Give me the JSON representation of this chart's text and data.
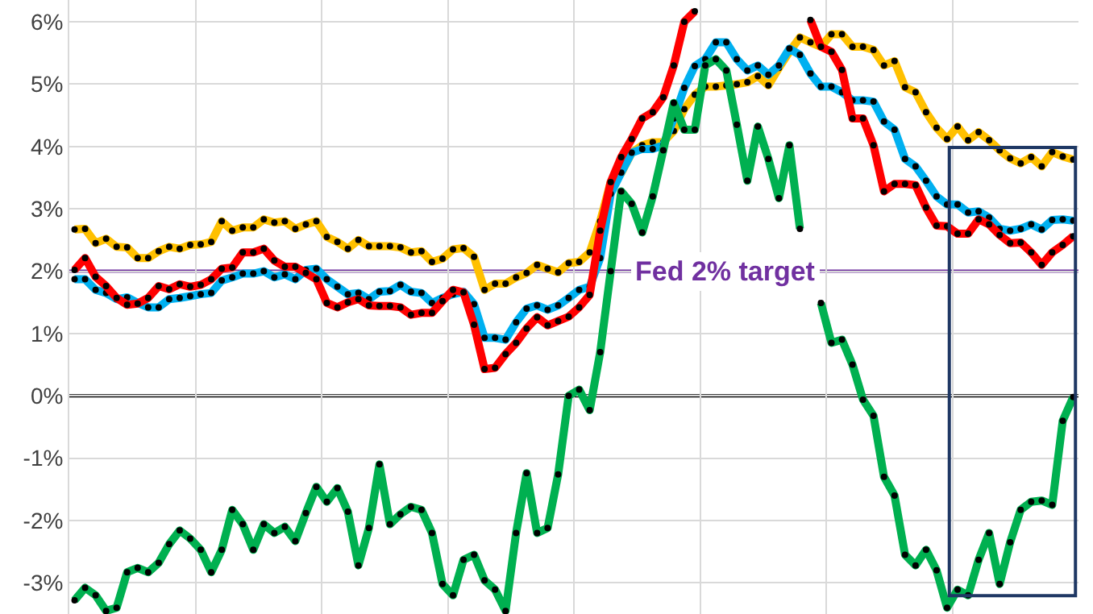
{
  "chart_data": {
    "type": "line",
    "categories": [
      null,
      null,
      null,
      null,
      null,
      null,
      null,
      null,
      null,
      null,
      null,
      null,
      null,
      null,
      null,
      null,
      null,
      null,
      null,
      null,
      null,
      null,
      null,
      null,
      null,
      null,
      null,
      null,
      null,
      null,
      null,
      null,
      null,
      null,
      null,
      null,
      null,
      null,
      null,
      null,
      null,
      null,
      null,
      null,
      null,
      null,
      null,
      null,
      null,
      null,
      null,
      null,
      null,
      null,
      null,
      null,
      null,
      null,
      null,
      null,
      null,
      null,
      null,
      null,
      null,
      null,
      null,
      null,
      null,
      null,
      null,
      null,
      null,
      null,
      null,
      null,
      null,
      null,
      null,
      null,
      null,
      null,
      null,
      null,
      null,
      null,
      null,
      null,
      null,
      null,
      null,
      null,
      null,
      null,
      null,
      null
    ],
    "series": [
      {
        "color": "#ffc000",
        "values": [
          2.67,
          2.68,
          2.45,
          2.52,
          2.39,
          2.38,
          2.21,
          2.21,
          2.32,
          2.39,
          2.36,
          2.42,
          2.43,
          2.47,
          2.8,
          2.65,
          2.7,
          2.7,
          2.83,
          2.78,
          2.8,
          2.68,
          2.75,
          2.8,
          2.55,
          2.47,
          2.36,
          2.5,
          2.4,
          2.4,
          2.4,
          2.38,
          2.3,
          2.32,
          2.15,
          2.2,
          2.35,
          2.37,
          2.23,
          1.7,
          1.8,
          1.8,
          1.9,
          1.97,
          2.1,
          2.04,
          1.98,
          2.13,
          2.15,
          2.3,
          2.8,
          3.43,
          3.57,
          3.9,
          4.02,
          4.07,
          4.07,
          4.25,
          4.6,
          4.83,
          4.96,
          4.96,
          4.98,
          5.0,
          5.03,
          5.13,
          4.98,
          5.26,
          5.52,
          5.75,
          5.67,
          5.6,
          5.8,
          5.8,
          5.6,
          5.6,
          5.55,
          5.3,
          5.37,
          4.95,
          4.87,
          4.55,
          4.3,
          4.12,
          4.32,
          4.1,
          4.23,
          4.1,
          3.94,
          3.81,
          3.73,
          3.83,
          3.68,
          3.91,
          3.84,
          3.79
        ]
      },
      {
        "color": "#00b0f0",
        "values": [
          1.87,
          1.87,
          1.7,
          1.65,
          1.55,
          1.58,
          1.49,
          1.42,
          1.42,
          1.55,
          1.57,
          1.6,
          1.63,
          1.65,
          1.85,
          1.9,
          1.96,
          1.96,
          2.0,
          1.9,
          1.95,
          1.87,
          2.02,
          2.04,
          1.87,
          1.75,
          1.63,
          1.65,
          1.55,
          1.67,
          1.68,
          1.78,
          1.67,
          1.65,
          1.49,
          1.57,
          1.63,
          1.67,
          1.47,
          0.93,
          0.93,
          0.9,
          1.18,
          1.4,
          1.45,
          1.38,
          1.45,
          1.57,
          1.7,
          1.75,
          2.21,
          3.24,
          3.58,
          3.9,
          3.96,
          3.96,
          4.02,
          4.45,
          4.94,
          5.29,
          5.4,
          5.67,
          5.67,
          5.4,
          5.22,
          5.3,
          5.15,
          5.3,
          5.57,
          5.47,
          5.17,
          4.96,
          4.96,
          4.87,
          4.74,
          4.74,
          4.72,
          4.4,
          4.27,
          3.8,
          3.68,
          3.45,
          3.2,
          3.07,
          3.07,
          2.94,
          2.96,
          2.86,
          2.68,
          2.65,
          2.68,
          2.75,
          2.67,
          2.82,
          2.83,
          2.81
        ]
      },
      {
        "color": "#ff0000",
        "values": [
          2.02,
          2.21,
          1.91,
          1.76,
          1.57,
          1.46,
          1.48,
          1.57,
          1.76,
          1.71,
          1.79,
          1.75,
          1.78,
          1.87,
          2.04,
          2.06,
          2.3,
          2.3,
          2.36,
          2.17,
          2.07,
          2.07,
          1.97,
          1.87,
          1.49,
          1.42,
          1.5,
          1.55,
          1.45,
          1.44,
          1.44,
          1.42,
          1.3,
          1.33,
          1.33,
          1.52,
          1.7,
          1.66,
          1.14,
          0.43,
          0.45,
          0.67,
          0.85,
          1.08,
          1.26,
          1.13,
          1.2,
          1.27,
          1.42,
          1.62,
          2.65,
          3.43,
          3.83,
          4.12,
          4.45,
          4.55,
          4.79,
          5.3,
          6.0,
          6.17,
          null,
          null,
          null,
          null,
          null,
          null,
          null,
          null,
          null,
          null,
          6.03,
          5.6,
          5.52,
          5.23,
          4.45,
          4.45,
          4.02,
          3.28,
          3.4,
          3.4,
          3.38,
          3.02,
          2.73,
          2.72,
          2.6,
          2.6,
          2.83,
          2.75,
          2.58,
          2.45,
          2.46,
          2.3,
          2.1,
          2.3,
          2.42,
          2.56
        ]
      },
      {
        "color": "#00b050",
        "values": [
          -3.28,
          -3.08,
          -3.2,
          -3.45,
          -3.4,
          -2.83,
          -2.76,
          -2.83,
          -2.68,
          -2.38,
          -2.16,
          -2.29,
          -2.47,
          -2.83,
          -2.47,
          -1.83,
          -2.06,
          -2.47,
          -2.06,
          -2.2,
          -2.1,
          -2.33,
          -1.88,
          -1.46,
          -1.7,
          -1.48,
          -1.86,
          -2.72,
          -2.12,
          -1.1,
          -2.06,
          -1.9,
          -1.78,
          -1.83,
          -2.2,
          -3.02,
          -3.2,
          -2.63,
          -2.55,
          -2.96,
          -3.11,
          -3.45,
          -2.2,
          -1.24,
          -2.2,
          -2.12,
          -1.26,
          0.0,
          0.1,
          -0.23,
          0.7,
          2.0,
          3.28,
          3.08,
          2.62,
          3.2,
          3.94,
          4.7,
          4.27,
          4.27,
          5.3,
          5.4,
          5.22,
          4.35,
          3.45,
          4.32,
          3.8,
          3.17,
          4.02,
          2.68,
          null,
          1.49,
          0.85,
          0.9,
          0.5,
          -0.06,
          -0.32,
          -1.3,
          -1.6,
          -2.55,
          -2.72,
          -2.47,
          -2.8,
          -3.4,
          -3.11,
          -3.2,
          -2.63,
          -2.2,
          -3.02,
          -2.35,
          -1.83,
          -1.7,
          -1.68,
          -1.75,
          -0.4,
          -0.02
        ]
      }
    ],
    "ylim": [
      -3.5,
      6.35
    ],
    "yticks": [
      {
        "value": -3,
        "label": "-3%"
      },
      {
        "value": -2,
        "label": "-2%"
      },
      {
        "value": -1,
        "label": "-1%"
      },
      {
        "value": 0,
        "label": "0%"
      },
      {
        "value": 1,
        "label": "1%"
      },
      {
        "value": 2,
        "label": "2%"
      },
      {
        "value": 3,
        "label": "3%"
      },
      {
        "value": 4,
        "label": "4%"
      },
      {
        "value": 5,
        "label": "5%"
      },
      {
        "value": 6,
        "label": "6%"
      }
    ],
    "ref_lines": [
      {
        "axis": "y",
        "value": 0,
        "color": "#000000"
      },
      {
        "axis": "y",
        "value": 2,
        "label": "Fed 2% target",
        "color": "#7030a0"
      }
    ],
    "tick_labels": "y",
    "grid": true,
    "marker": "circle",
    "line_style": "solid"
  }
}
